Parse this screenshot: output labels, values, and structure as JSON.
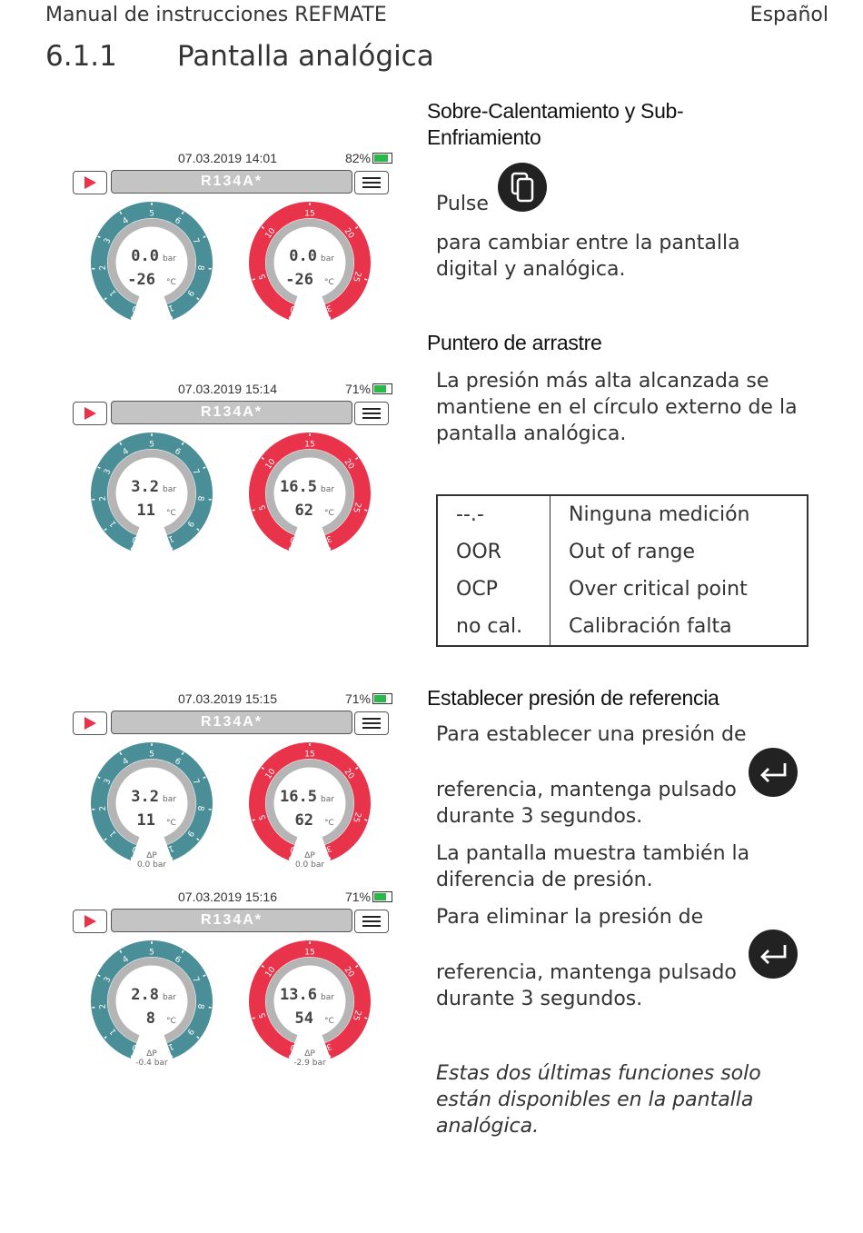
{
  "header": {
    "manual_title": "Manual de instrucciones REFMATE",
    "language": "Español"
  },
  "section": {
    "number": "6.1.1",
    "title": "Pantalla analógica"
  },
  "superheat": {
    "heading": "Sobre-Calentamiento y Sub-Enfriamiento",
    "pulse": "Pulse",
    "text": "para cambiar entre la pantalla digital y analógica."
  },
  "drag_pointer": {
    "heading": "Puntero de arrastre",
    "text": "La presión más alta alcanzada se mantiene en el círculo externo de la pantalla analógica."
  },
  "legend": [
    {
      "code": "--.-",
      "meaning": "Ninguna medición"
    },
    {
      "code": "OOR",
      "meaning": "Out of range"
    },
    {
      "code": "OCP",
      "meaning": "Over critical point"
    },
    {
      "code": "no cal.",
      "meaning": "Calibración falta"
    }
  ],
  "reference": {
    "heading": "Establecer presión de referencia",
    "set_line1": "Para establecer una presión de",
    "set_line2": "referencia, mantenga pulsado",
    "set_line3": "durante 3 segundos.",
    "shows": "La pantalla muestra también la diferencia de presión.",
    "del_line1": "Para eliminar la presión de",
    "del_line2": "referencia, mantenga pulsado",
    "del_line3": "durante 3 segundos."
  },
  "note": "Estas dos últimas funciones solo están disponibles en la pantalla analógica.",
  "colors": {
    "low_gauge": "#4a8f98",
    "high_gauge": "#e8334a",
    "inner_ring": "#b5b5b5"
  },
  "screens": [
    {
      "datetime": "07.03.2019 14:01",
      "battery": "82%",
      "battery_level": 0.82,
      "refrigerant": "R134A*",
      "low": {
        "pressure": "0.0",
        "p_unit": "bar",
        "temp": "-26",
        "t_unit": "°C",
        "ticks": [
          "0",
          "1",
          "2",
          "3",
          "4",
          "5",
          "6",
          "7",
          "8",
          "9",
          "10"
        ]
      },
      "high": {
        "pressure": "0.0",
        "p_unit": "bar",
        "temp": "-26",
        "t_unit": "°C",
        "ticks": [
          "0",
          "5",
          "10",
          "15",
          "20",
          "25",
          "30"
        ]
      }
    },
    {
      "datetime": "07.03.2019 15:14",
      "battery": "71%",
      "battery_level": 0.71,
      "refrigerant": "R134A*",
      "low": {
        "pressure": "3.2",
        "p_unit": "bar",
        "temp": "11",
        "t_unit": "°C",
        "ticks": [
          "0",
          "1",
          "2",
          "3",
          "4",
          "5",
          "6",
          "7",
          "8",
          "9",
          "10"
        ]
      },
      "high": {
        "pressure": "16.5",
        "p_unit": "bar",
        "temp": "62",
        "t_unit": "°C",
        "ticks": [
          "0",
          "5",
          "10",
          "15",
          "20",
          "25",
          "30"
        ]
      }
    },
    {
      "datetime": "07.03.2019 15:15",
      "battery": "71%",
      "battery_level": 0.71,
      "refrigerant": "R134A*",
      "low": {
        "pressure": "3.2",
        "p_unit": "bar",
        "temp": "11",
        "t_unit": "°C",
        "dp_label": "ΔP",
        "dp": "0.0  bar",
        "ticks": [
          "0",
          "1",
          "2",
          "3",
          "4",
          "5",
          "6",
          "7",
          "8",
          "9",
          "10"
        ]
      },
      "high": {
        "pressure": "16.5",
        "p_unit": "bar",
        "temp": "62",
        "t_unit": "°C",
        "dp_label": "ΔP",
        "dp": "0.0  bar",
        "ticks": [
          "0",
          "5",
          "10",
          "15",
          "20",
          "25",
          "30"
        ]
      }
    },
    {
      "datetime": "07.03.2019 15:16",
      "battery": "71%",
      "battery_level": 0.71,
      "refrigerant": "R134A*",
      "low": {
        "pressure": "2.8",
        "p_unit": "bar",
        "temp": "8",
        "t_unit": "°C",
        "dp_label": "ΔP",
        "dp": "-0.4  bar",
        "ticks": [
          "0",
          "1",
          "2",
          "3",
          "4",
          "5",
          "6",
          "7",
          "8",
          "9",
          "10"
        ]
      },
      "high": {
        "pressure": "13.6",
        "p_unit": "bar",
        "temp": "54",
        "t_unit": "°C",
        "dp_label": "ΔP",
        "dp": "-2.9  bar",
        "ticks": [
          "0",
          "5",
          "10",
          "15",
          "20",
          "25",
          "30"
        ]
      }
    }
  ]
}
